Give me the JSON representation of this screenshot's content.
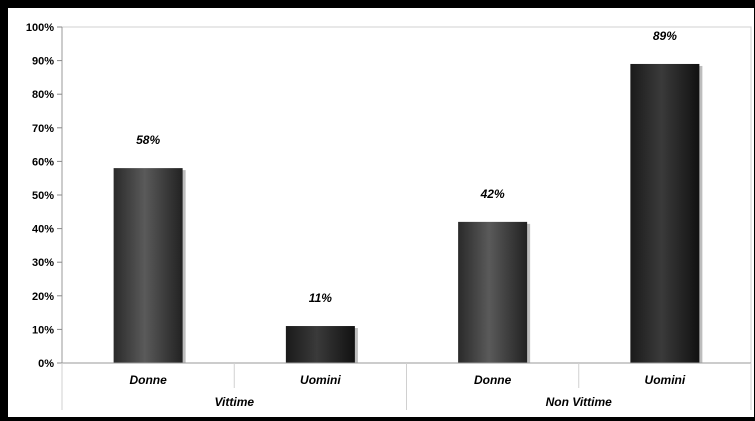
{
  "chart_data": {
    "type": "bar",
    "categories": [
      "Donne",
      "Uomini",
      "Donne",
      "Uomini"
    ],
    "groups": [
      "Vittime",
      "Non Vittime"
    ],
    "values": [
      58,
      11,
      42,
      89
    ],
    "data_labels": [
      "58%",
      "11%",
      "42%",
      "89%"
    ],
    "bar_colors": [
      "#4a4a4a",
      "#262626",
      "#4a4a4a",
      "#262626"
    ],
    "y_ticks": [
      "0%",
      "10%",
      "20%",
      "30%",
      "40%",
      "50%",
      "60%",
      "70%",
      "80%",
      "90%",
      "100%"
    ],
    "ylim": [
      0,
      100
    ],
    "grid": false,
    "title": "",
    "xlabel": "",
    "ylabel": ""
  }
}
